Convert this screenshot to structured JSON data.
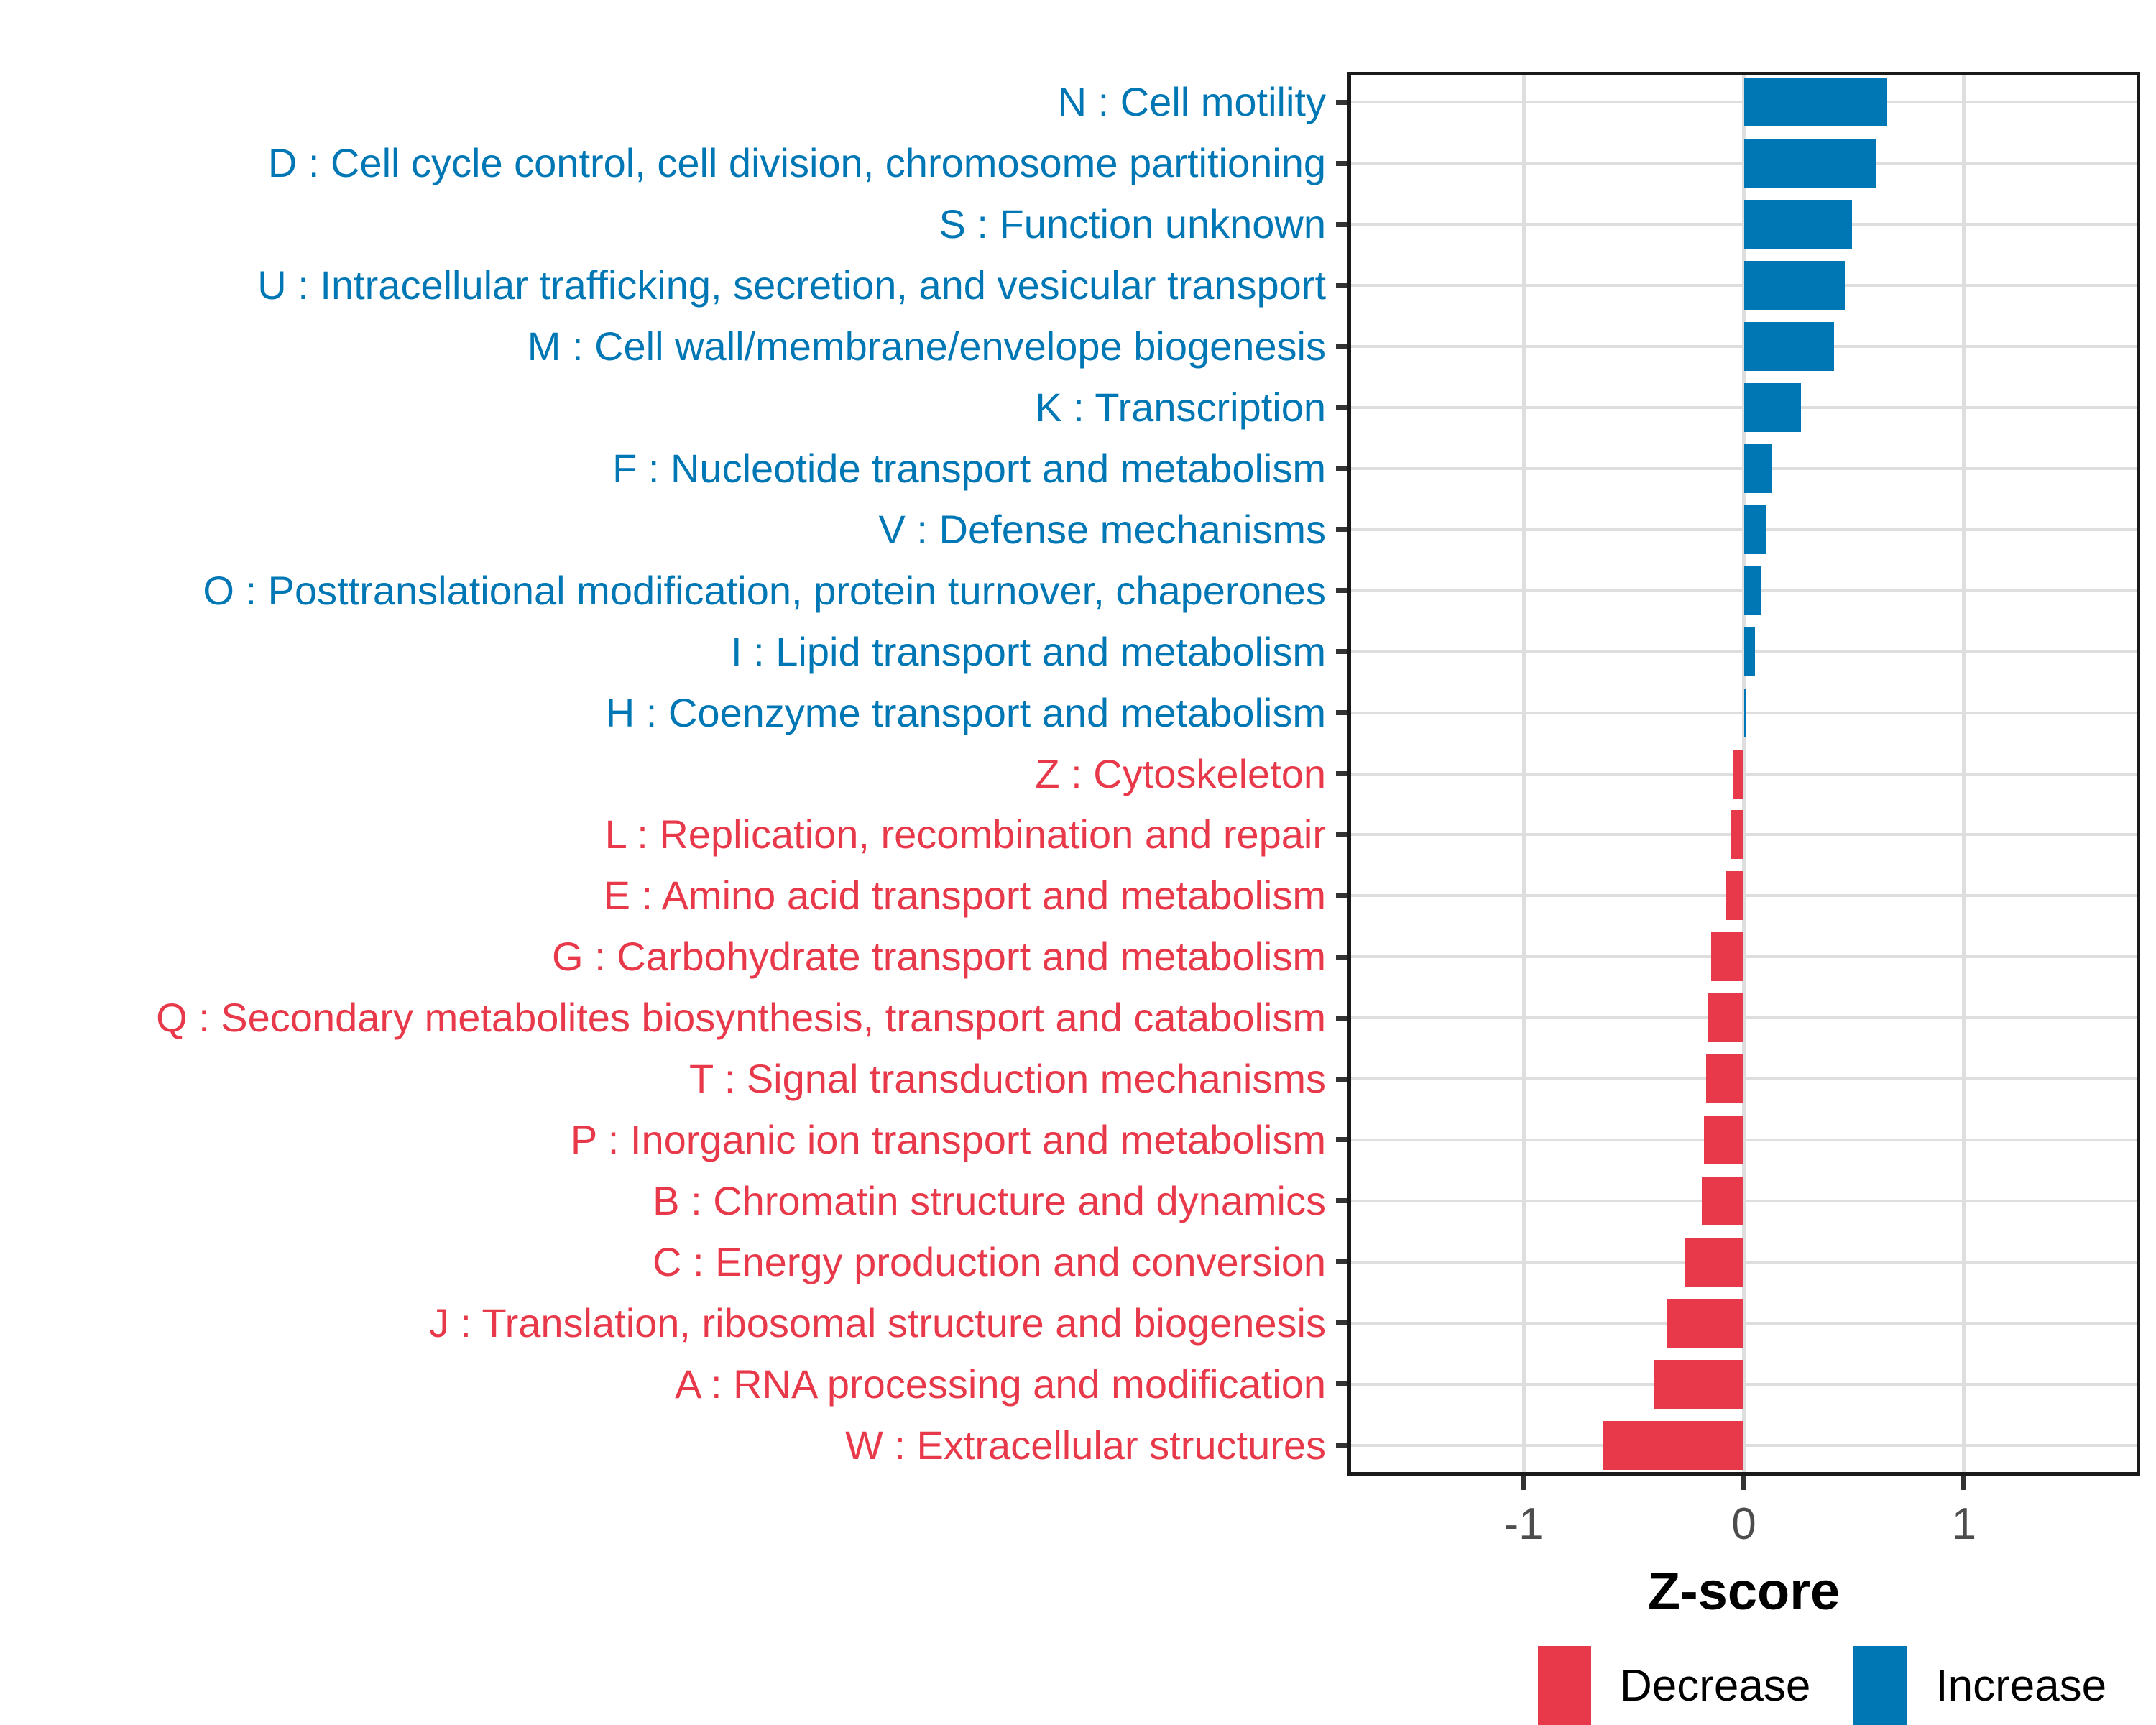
{
  "colors": {
    "increase": "#0077B5",
    "decrease": "#E8394A",
    "grid": "#DEDEDE",
    "axis_text": "#4D4D4D",
    "panel_border": "#1A1A1A",
    "tick_mark": "#333333"
  },
  "x_axis": {
    "label": "Z-score",
    "ticks": [
      -1,
      0,
      1
    ],
    "tick_labels": [
      "-1",
      "0",
      "1"
    ],
    "range": [
      -1.8,
      1.8
    ]
  },
  "legend": [
    {
      "label": "Decrease",
      "color_key": "decrease"
    },
    {
      "label": "Increase",
      "color_key": "increase"
    }
  ],
  "chart_data": {
    "type": "bar",
    "orientation": "horizontal",
    "title": "",
    "xlabel": "Z-score",
    "ylabel": "",
    "xlim": [
      -1.8,
      1.8
    ],
    "grid": true,
    "legend_position": "bottom",
    "categories": [
      "N : Cell motility",
      "D : Cell cycle control, cell division, chromosome partitioning",
      "S : Function unknown",
      "U : Intracellular trafficking, secretion, and vesicular transport",
      "M : Cell wall/membrane/envelope biogenesis",
      "K : Transcription",
      "F : Nucleotide transport and metabolism",
      "V : Defense mechanisms",
      "O : Posttranslational modification, protein turnover, chaperones",
      "I : Lipid transport and metabolism",
      "H : Coenzyme transport and metabolism",
      "Z : Cytoskeleton",
      "L : Replication, recombination and repair",
      "E : Amino acid transport and metabolism",
      "G : Carbohydrate transport and metabolism",
      "Q : Secondary metabolites biosynthesis, transport and catabolism",
      "T : Signal transduction mechanisms",
      "P : Inorganic ion transport and metabolism",
      "B : Chromatin structure and dynamics",
      "C : Energy production and conversion",
      "J : Translation, ribosomal structure and biogenesis",
      "A : RNA processing and modification",
      "W : Extracellular structures"
    ],
    "values": [
      0.65,
      0.6,
      0.49,
      0.46,
      0.41,
      0.26,
      0.13,
      0.1,
      0.08,
      0.05,
      0.01,
      -0.05,
      -0.06,
      -0.08,
      -0.15,
      -0.16,
      -0.17,
      -0.18,
      -0.19,
      -0.27,
      -0.35,
      -0.41,
      -0.64
    ],
    "groups": [
      "Increase",
      "Increase",
      "Increase",
      "Increase",
      "Increase",
      "Increase",
      "Increase",
      "Increase",
      "Increase",
      "Increase",
      "Increase",
      "Decrease",
      "Decrease",
      "Decrease",
      "Decrease",
      "Decrease",
      "Decrease",
      "Decrease",
      "Decrease",
      "Decrease",
      "Decrease",
      "Decrease",
      "Decrease"
    ]
  }
}
